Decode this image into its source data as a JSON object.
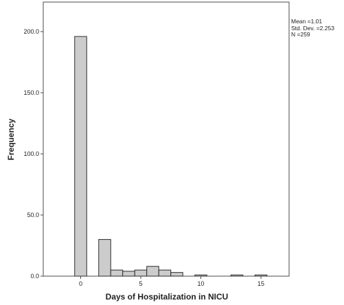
{
  "chart_data": {
    "type": "bar",
    "title": "",
    "xlabel": "Days of Hospitalization in NICU",
    "ylabel": "Frequency",
    "xlim": [
      -5.5,
      18
    ],
    "ylim": [
      0,
      225
    ],
    "bin_width": 1,
    "bins": [
      {
        "x": 0,
        "value": 196
      },
      {
        "x": 2,
        "value": 30
      },
      {
        "x": 3,
        "value": 5
      },
      {
        "x": 4,
        "value": 4
      },
      {
        "x": 5,
        "value": 5
      },
      {
        "x": 6,
        "value": 8
      },
      {
        "x": 7,
        "value": 5
      },
      {
        "x": 8,
        "value": 3
      },
      {
        "x": 10,
        "value": 1
      },
      {
        "x": 13,
        "value": 1
      },
      {
        "x": 15,
        "value": 1
      }
    ],
    "x_ticks": [
      {
        "value": 0,
        "label": "0"
      },
      {
        "value": 5,
        "label": "5"
      },
      {
        "value": 10,
        "label": "10"
      },
      {
        "value": 15,
        "label": "15"
      }
    ],
    "y_ticks": [
      {
        "value": 0,
        "label": "0.0"
      },
      {
        "value": 50,
        "label": "50.0"
      },
      {
        "value": 100,
        "label": "100.0"
      },
      {
        "value": 150,
        "label": "150.0"
      },
      {
        "value": 200,
        "label": "200.0"
      }
    ],
    "grid": false,
    "colors": {
      "bar_fill": "#cccccc",
      "bar_stroke": "#2a2a2a",
      "frame": "#4a4a4a"
    }
  },
  "stats": {
    "mean": "Mean =1.01",
    "std": "Std. Dev. =2.253",
    "n": "N =259"
  }
}
